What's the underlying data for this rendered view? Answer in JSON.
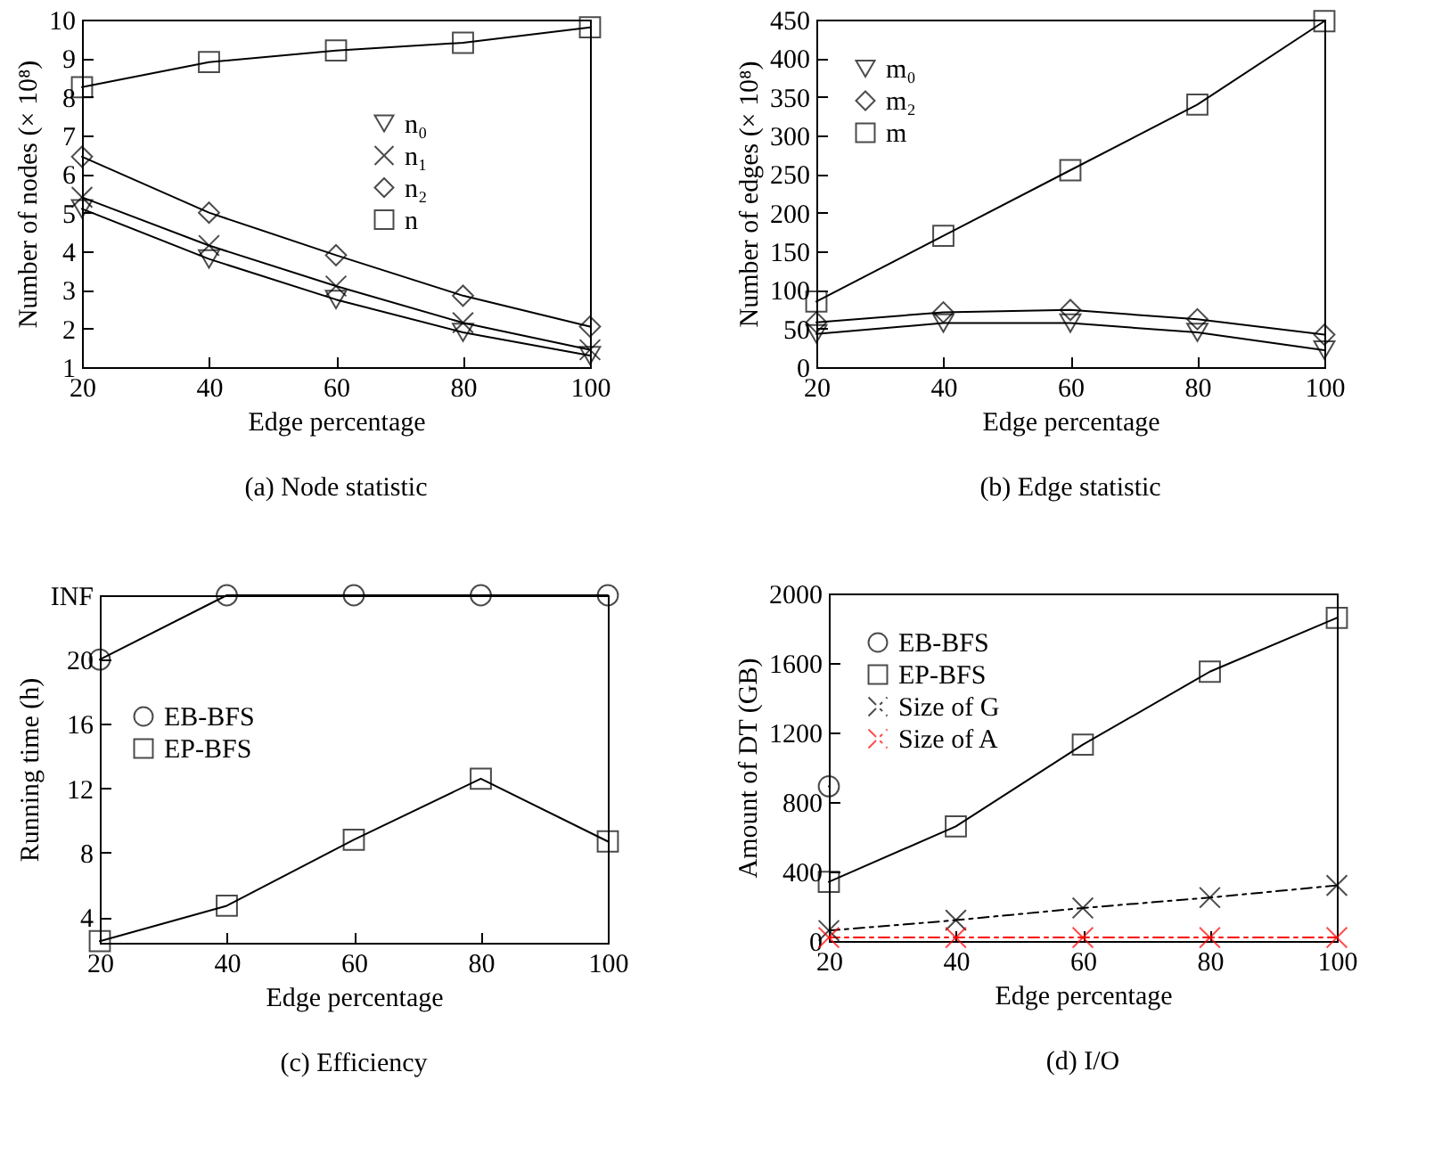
{
  "chart_data": [
    {
      "type": "line",
      "title": "(a) Node statistic",
      "xlabel": "Edge percentage",
      "ylabel": "Number of nodes (× 10⁸)",
      "x": [
        20,
        40,
        60,
        80,
        100
      ],
      "xlim": [
        20,
        100
      ],
      "xticks": [
        20,
        40,
        60,
        80,
        100
      ],
      "ylim": [
        1,
        10
      ],
      "yticks": [
        1,
        2,
        3,
        4,
        5,
        6,
        7,
        8,
        9,
        10
      ],
      "legend": "right",
      "grid": false,
      "series": [
        {
          "name": "n₀",
          "color": "#000000",
          "marker": "triangle",
          "values": [
            5.1,
            3.8,
            2.75,
            1.9,
            1.3
          ]
        },
        {
          "name": "n₁",
          "color": "#000000",
          "marker": "cross",
          "values": [
            5.4,
            4.15,
            3.1,
            2.15,
            1.45
          ]
        },
        {
          "name": "n₂",
          "color": "#000000",
          "marker": "diamond",
          "values": [
            6.45,
            5.0,
            3.9,
            2.85,
            2.05
          ]
        },
        {
          "name": "n",
          "color": "#000000",
          "marker": "square",
          "values": [
            8.25,
            8.9,
            9.2,
            9.4,
            9.8
          ]
        }
      ]
    },
    {
      "type": "line",
      "title": "(b) Edge statistic",
      "xlabel": "Edge percentage",
      "ylabel": "Number of edges (× 10⁸)",
      "x": [
        20,
        40,
        60,
        80,
        100
      ],
      "xlim": [
        20,
        100
      ],
      "xticks": [
        20,
        40,
        60,
        80,
        100
      ],
      "ylim": [
        0,
        450
      ],
      "yticks": [
        0,
        50,
        100,
        150,
        200,
        250,
        300,
        350,
        400,
        450
      ],
      "legend": "top left",
      "grid": false,
      "series": [
        {
          "name": "m₀",
          "color": "#000000",
          "marker": "triangle",
          "values": [
            43,
            57,
            57,
            45,
            22
          ]
        },
        {
          "name": "m₂",
          "color": "#000000",
          "marker": "diamond",
          "values": [
            58,
            71,
            74,
            62,
            42
          ]
        },
        {
          "name": "m",
          "color": "#000000",
          "marker": "square",
          "values": [
            85,
            170,
            255,
            340,
            448
          ]
        }
      ]
    },
    {
      "type": "line",
      "title": "(c) Efficiency",
      "xlabel": "Edge percentage",
      "ylabel": "Running time (h)",
      "x": [
        20,
        40,
        60,
        80,
        100
      ],
      "xlim": [
        20,
        100
      ],
      "xticks": [
        20,
        40,
        60,
        80,
        100
      ],
      "ylim": [
        2.4,
        24
      ],
      "yticks": [
        4,
        8,
        12,
        16,
        20,
        {
          "value": 24,
          "label": "INF"
        }
      ],
      "legend": "left",
      "grid": false,
      "series": [
        {
          "name": "EB-BFS",
          "color": "#000000",
          "marker": "circle",
          "values": [
            20,
            24,
            24,
            24,
            24
          ]
        },
        {
          "name": "EP-BFS",
          "color": "#000000",
          "marker": "square",
          "values": [
            2.5,
            4.7,
            8.8,
            12.6,
            8.7
          ]
        }
      ]
    },
    {
      "type": "line",
      "title": "(d) I/O",
      "xlabel": "Edge percentage",
      "ylabel": "Amount of DT (GB)",
      "x": [
        20,
        40,
        60,
        80,
        100
      ],
      "xlim": [
        20,
        100
      ],
      "xticks": [
        20,
        40,
        60,
        80,
        100
      ],
      "ylim": [
        0,
        2000
      ],
      "yticks": [
        0,
        400,
        800,
        1200,
        1600,
        2000
      ],
      "legend": "top left",
      "grid": false,
      "series": [
        {
          "name": "EB-BFS",
          "color": "#000000",
          "marker": "circle",
          "values": [
            890,
            null,
            null,
            null,
            null
          ]
        },
        {
          "name": "EP-BFS",
          "color": "#000000",
          "marker": "square",
          "values": [
            340,
            660,
            1130,
            1550,
            1860
          ]
        },
        {
          "name": "Size of G",
          "color": "#000000",
          "marker": "cross",
          "line_style": "dashed",
          "values": [
            60,
            120,
            190,
            250,
            320
          ]
        },
        {
          "name": "Size of A",
          "color": "#ff0000",
          "marker": "cross",
          "line_style": "dashed",
          "values": [
            20,
            20,
            20,
            20,
            20
          ]
        }
      ]
    }
  ]
}
